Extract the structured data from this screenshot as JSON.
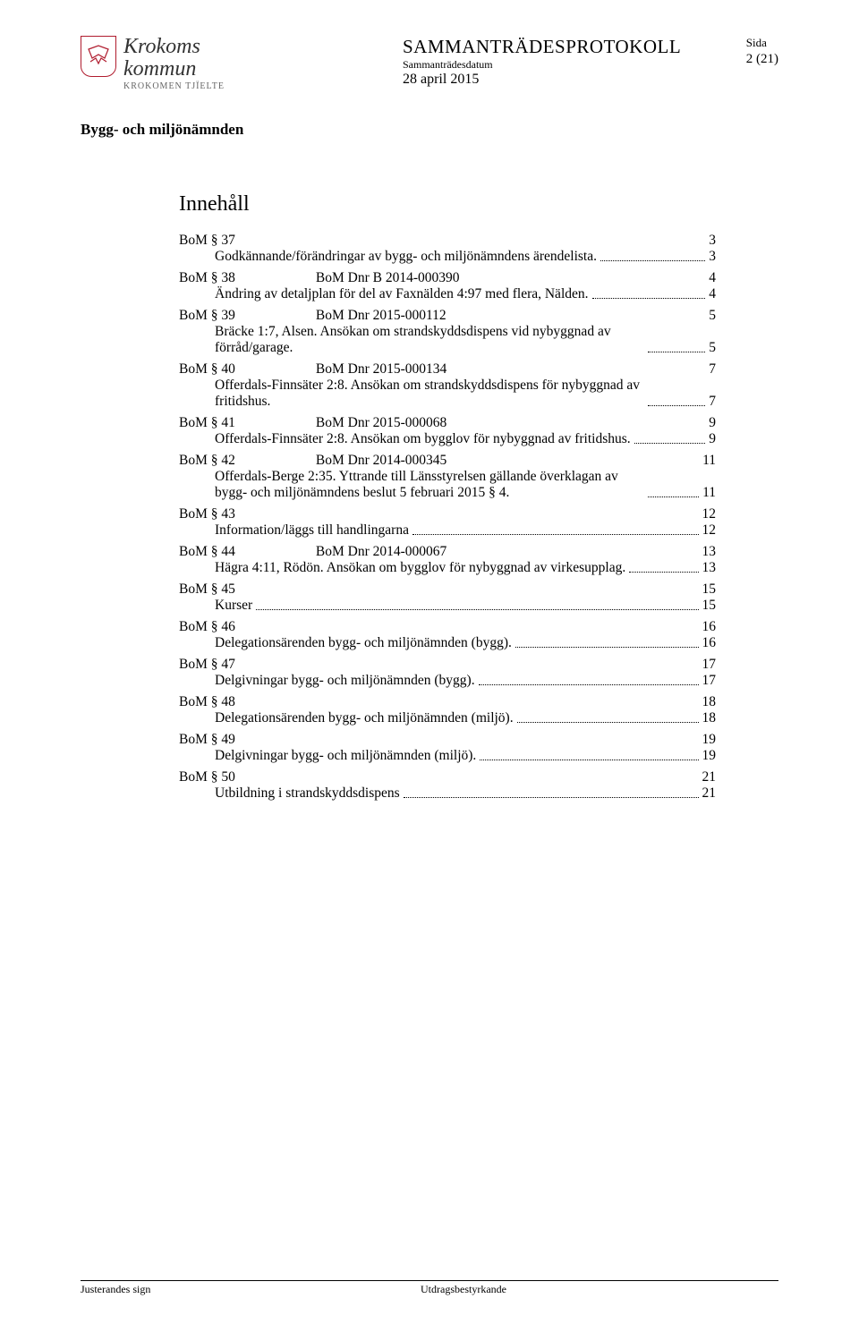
{
  "header": {
    "org_line1": "Krokoms",
    "org_line2": "kommun",
    "org_line3": "KROKOMEN TJÏELTE",
    "protocol_title": "SAMMANTRÄDESPROTOKOLL",
    "meeting_date_label": "Sammanträdesdatum",
    "meeting_date": "28 april 2015",
    "sida_label": "Sida",
    "sida_value": "2 (21)",
    "committee": "Bygg- och miljönämnden"
  },
  "content_title": "Innehåll",
  "toc": [
    {
      "bom": "BoM § 37",
      "dnr": "",
      "page_top": "3",
      "desc": "Godkännande/förändringar av bygg- och miljönämndens ärendelista.",
      "page_sub": "3"
    },
    {
      "bom": "BoM § 38",
      "dnr": "BoM Dnr B 2014-000390",
      "page_top": "4",
      "desc": "Ändring av detaljplan för del av Faxnälden 4:97 med flera, Nälden.",
      "page_sub": "4"
    },
    {
      "bom": "BoM § 39",
      "dnr": "BoM Dnr 2015-000112",
      "page_top": "5",
      "desc": "Bräcke 1:7, Alsen. Ansökan om strandskyddsdispens vid nybyggnad av förråd/garage.",
      "page_sub": "5"
    },
    {
      "bom": "BoM § 40",
      "dnr": "BoM Dnr 2015-000134",
      "page_top": "7",
      "desc": "Offerdals-Finnsäter 2:8. Ansökan om strandskyddsdispens för nybyggnad av fritidshus.",
      "page_sub": "7"
    },
    {
      "bom": "BoM § 41",
      "dnr": "BoM Dnr 2015-000068",
      "page_top": "9",
      "desc": "Offerdals-Finnsäter 2:8. Ansökan om bygglov för nybyggnad av fritidshus.",
      "page_sub": "9"
    },
    {
      "bom": "BoM § 42",
      "dnr": "BoM Dnr 2014-000345",
      "page_top": "11",
      "desc": "Offerdals-Berge 2:35. Yttrande till Länsstyrelsen gällande överklagan av bygg- och miljönämndens beslut 5 februari 2015 § 4.",
      "page_sub": "11"
    },
    {
      "bom": "BoM § 43",
      "dnr": "",
      "page_top": "12",
      "desc": "Information/läggs till handlingarna",
      "page_sub": "12"
    },
    {
      "bom": "BoM § 44",
      "dnr": "BoM Dnr 2014-000067",
      "page_top": "13",
      "desc": "Hägra 4:11, Rödön. Ansökan om bygglov för nybyggnad av virkesupplag.",
      "page_sub": "13"
    },
    {
      "bom": "BoM § 45",
      "dnr": "",
      "page_top": "15",
      "desc": "Kurser",
      "page_sub": "15"
    },
    {
      "bom": "BoM § 46",
      "dnr": "",
      "page_top": "16",
      "desc": "Delegationsärenden bygg- och miljönämnden (bygg).",
      "page_sub": "16"
    },
    {
      "bom": "BoM § 47",
      "dnr": "",
      "page_top": "17",
      "desc": "Delgivningar bygg- och miljönämnden (bygg).",
      "page_sub": "17"
    },
    {
      "bom": "BoM § 48",
      "dnr": "",
      "page_top": "18",
      "desc": "Delegationsärenden bygg- och miljönämnden (miljö).",
      "page_sub": "18"
    },
    {
      "bom": "BoM § 49",
      "dnr": "",
      "page_top": "19",
      "desc": "Delgivningar bygg- och miljönämnden (miljö).",
      "page_sub": "19"
    },
    {
      "bom": "BoM § 50",
      "dnr": "",
      "page_top": "21",
      "desc": "Utbildning i strandskyddsdispens",
      "page_sub": "21"
    }
  ],
  "footer": {
    "left": "Justerandes sign",
    "right": "Utdragsbestyrkande"
  },
  "colors": {
    "text": "#000000",
    "crest": "#b01c2e",
    "logo_text": "#333333",
    "background": "#ffffff"
  }
}
